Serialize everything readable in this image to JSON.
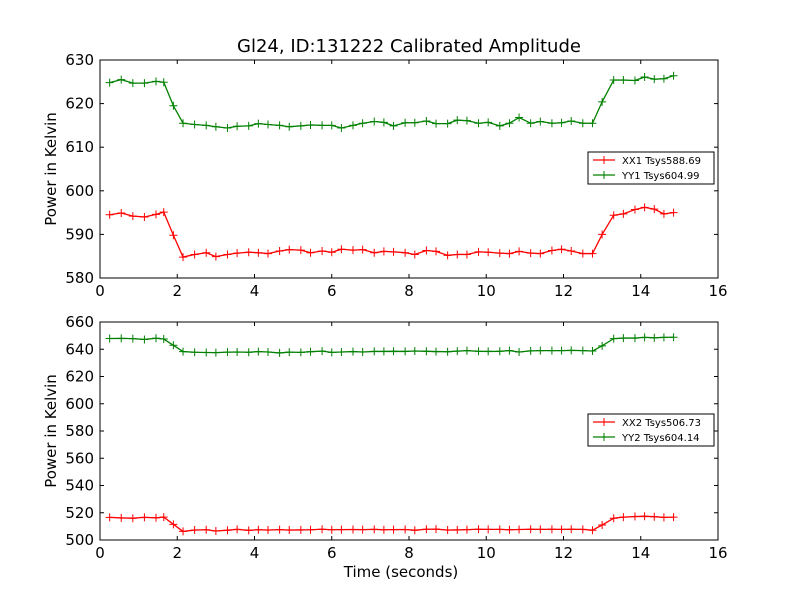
{
  "chart_data": [
    {
      "type": "line",
      "title": "Gl24, ID:131222 Calibrated Amplitude",
      "xlabel": "",
      "ylabel": "Power in Kelvin",
      "xlim": [
        0,
        16
      ],
      "ylim": [
        580,
        630
      ],
      "xticks": [
        0,
        2,
        4,
        6,
        8,
        10,
        12,
        14,
        16
      ],
      "yticks": [
        580,
        590,
        600,
        610,
        620,
        630
      ],
      "grid": false,
      "legend_position": "center-right",
      "x": [
        0.25,
        0.55,
        0.85,
        1.15,
        1.45,
        1.65,
        1.9,
        2.15,
        2.45,
        2.75,
        3.0,
        3.3,
        3.55,
        3.85,
        4.1,
        4.35,
        4.65,
        4.9,
        5.2,
        5.45,
        5.75,
        6.0,
        6.25,
        6.55,
        6.8,
        7.1,
        7.35,
        7.6,
        7.9,
        8.15,
        8.45,
        8.7,
        9.0,
        9.25,
        9.5,
        9.8,
        10.05,
        10.35,
        10.6,
        10.85,
        11.15,
        11.4,
        11.7,
        11.95,
        12.2,
        12.5,
        12.75,
        13.0,
        13.3,
        13.55,
        13.85,
        14.1,
        14.35,
        14.6,
        14.85
      ],
      "series": [
        {
          "name": "XX1 Tsys588.69",
          "color": "#ff0000",
          "values": [
            594.5,
            594.9,
            594.2,
            594.0,
            594.6,
            595.1,
            589.8,
            584.8,
            585.4,
            585.8,
            584.9,
            585.4,
            585.7,
            585.9,
            585.8,
            585.6,
            586.2,
            586.5,
            586.4,
            585.8,
            586.2,
            585.9,
            586.6,
            586.4,
            586.5,
            585.8,
            586.1,
            586.0,
            585.8,
            585.4,
            586.3,
            586.1,
            585.2,
            585.4,
            585.4,
            586.0,
            585.9,
            585.7,
            585.6,
            586.1,
            585.7,
            585.6,
            586.3,
            586.6,
            586.2,
            585.6,
            585.6,
            590.0,
            594.4,
            594.7,
            595.7,
            596.2,
            595.8,
            594.7,
            595.0
          ]
        },
        {
          "name": "YY1 Tsys604.99",
          "color": "#008000",
          "values": [
            624.8,
            625.5,
            624.7,
            624.7,
            625.1,
            624.9,
            619.5,
            615.5,
            615.2,
            615.0,
            614.7,
            614.4,
            614.8,
            614.9,
            615.4,
            615.2,
            615.0,
            614.7,
            614.9,
            615.1,
            615.0,
            615.0,
            614.4,
            615.0,
            615.5,
            615.9,
            615.7,
            614.9,
            615.6,
            615.6,
            616.0,
            615.4,
            615.4,
            616.2,
            616.1,
            615.5,
            615.7,
            614.9,
            615.5,
            616.8,
            615.5,
            615.9,
            615.5,
            615.6,
            616.0,
            615.5,
            615.5,
            620.4,
            625.4,
            625.4,
            625.3,
            626.1,
            625.6,
            625.7,
            626.4
          ]
        }
      ]
    },
    {
      "type": "line",
      "title": "",
      "xlabel": "Time (seconds)",
      "ylabel": "Power in Kelvin",
      "xlim": [
        0,
        16
      ],
      "ylim": [
        500,
        660
      ],
      "xticks": [
        0,
        2,
        4,
        6,
        8,
        10,
        12,
        14,
        16
      ],
      "yticks": [
        500,
        520,
        540,
        560,
        580,
        600,
        620,
        640,
        660
      ],
      "grid": false,
      "legend_position": "center-right",
      "x": [
        0.25,
        0.55,
        0.85,
        1.15,
        1.45,
        1.65,
        1.9,
        2.15,
        2.45,
        2.75,
        3.0,
        3.3,
        3.55,
        3.85,
        4.1,
        4.35,
        4.65,
        4.9,
        5.2,
        5.45,
        5.75,
        6.0,
        6.25,
        6.55,
        6.8,
        7.1,
        7.35,
        7.6,
        7.9,
        8.15,
        8.45,
        8.7,
        9.0,
        9.25,
        9.5,
        9.8,
        10.05,
        10.35,
        10.6,
        10.85,
        11.15,
        11.4,
        11.7,
        11.95,
        12.2,
        12.5,
        12.75,
        13.0,
        13.3,
        13.55,
        13.85,
        14.1,
        14.35,
        14.6,
        14.85
      ],
      "series": [
        {
          "name": "XX2 Tsys506.73",
          "color": "#ff0000",
          "values": [
            516.6,
            516.2,
            516.0,
            516.6,
            516.3,
            516.8,
            511.5,
            506.3,
            507.3,
            507.5,
            506.6,
            507.2,
            507.8,
            507.1,
            507.5,
            507.3,
            507.6,
            507.3,
            507.4,
            507.5,
            507.9,
            507.5,
            507.6,
            507.7,
            507.6,
            507.8,
            507.5,
            507.6,
            507.7,
            507.2,
            507.9,
            508.0,
            507.3,
            507.4,
            507.6,
            507.9,
            507.8,
            507.8,
            507.5,
            507.7,
            507.9,
            507.8,
            507.9,
            507.8,
            507.9,
            507.8,
            507.2,
            511.0,
            516.0,
            516.8,
            517.2,
            517.4,
            517.1,
            516.6,
            516.8
          ]
        },
        {
          "name": "YY2 Tsys604.14",
          "color": "#008000",
          "values": [
            647.9,
            648.0,
            647.8,
            647.2,
            648.1,
            647.5,
            642.9,
            638.3,
            637.8,
            637.6,
            637.5,
            637.9,
            638.0,
            637.8,
            638.3,
            638.0,
            637.3,
            637.9,
            637.7,
            638.2,
            638.6,
            637.7,
            638.0,
            638.3,
            638.0,
            638.4,
            638.4,
            638.5,
            638.4,
            638.7,
            638.5,
            638.3,
            638.2,
            638.6,
            639.0,
            638.5,
            638.4,
            638.5,
            639.0,
            638.0,
            638.8,
            639.0,
            639.0,
            639.0,
            639.2,
            639.0,
            638.7,
            642.5,
            647.8,
            648.2,
            648.2,
            648.7,
            648.4,
            648.7,
            648.8
          ]
        }
      ]
    }
  ]
}
